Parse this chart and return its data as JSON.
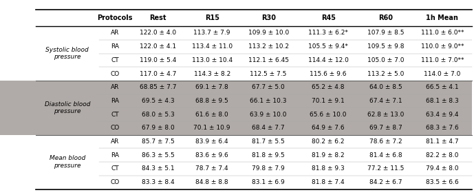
{
  "columns": [
    "Protocols",
    "Rest",
    "R15",
    "R30",
    "R45",
    "R60",
    "1h Mean"
  ],
  "sections": [
    {
      "label": "Systolic blood\npressure",
      "bg": "#ffffff",
      "rows": [
        [
          "AR",
          "122.0 ± 4.0",
          "113.7 ± 7.9",
          "109.9 ± 10.0",
          "111.3 ± 6.2*",
          "107.9 ± 8.5",
          "111.0 ± 6.0**"
        ],
        [
          "RA",
          "122.0 ± 4.1",
          "113.4 ± 11.0",
          "113.2 ± 10.2",
          "105.5 ± 9.4*",
          "109.5 ± 9.8",
          "110.0 ± 9.0**"
        ],
        [
          "CT",
          "119.0 ± 5.4",
          "113.0 ± 10.4",
          "112.1 ± 6.45",
          "114.4 ± 12.0",
          "105.0 ± 7.0",
          "111.0 ± 7.0**"
        ],
        [
          "CO",
          "117.0 ± 4.7",
          "114.3 ± 8.2",
          "112.5 ± 7.5",
          "115.6 ± 9.6",
          "113.2 ± 5.0",
          "114.0 ± 7.0"
        ]
      ]
    },
    {
      "label": "Diastolic blood\npressure",
      "bg": "#b0aba8",
      "rows": [
        [
          "AR",
          "68.85 ± 7.7",
          "69.1 ± 7.8",
          "67.7 ± 5.0",
          "65.2 ± 4.8",
          "64.0 ± 8.5",
          "66.5 ± 4.1"
        ],
        [
          "RA",
          "69.5 ± 4.3",
          "68.8 ± 9.5",
          "66.1 ± 10.3",
          "70.1 ± 9.1",
          "67.4 ± 7.1",
          "68.1 ± 8.3"
        ],
        [
          "CT",
          "68.0 ± 5.3",
          "61.6 ± 8.0",
          "63.9 ± 10.0",
          "65.6 ± 10.0",
          "62.8 ± 13.0",
          "63.4 ± 9.4"
        ],
        [
          "CO",
          "67.9 ± 8.0",
          "70.1 ± 10.9",
          "68.4 ± 7.7",
          "64.9 ± 7.6",
          "69.7 ± 8.7",
          "68.3 ± 7.6"
        ]
      ]
    },
    {
      "label": "Mean blood\npressure",
      "bg": "#ffffff",
      "rows": [
        [
          "AR",
          "85.7 ± 7.5",
          "83.9 ± 6.4",
          "81.7 ± 5.5",
          "80.2 ± 6.2",
          "78.6 ± 7.2",
          "81.1 ± 4.7"
        ],
        [
          "RA",
          "86.3 ± 5.5",
          "83.6 ± 9.6",
          "81.8 ± 9.5",
          "81.9 ± 8.2",
          "81.4 ± 6.8",
          "82.2 ± 8.0"
        ],
        [
          "CT",
          "84.3 ± 5.1",
          "78.7 ± 7.4",
          "79.8 ± 7.9",
          "81.8 ± 9.3",
          "77.2 ± 11.5",
          "79.4 ± 8.0"
        ],
        [
          "CO",
          "83.3 ± 8.4",
          "84.8 ± 8.8",
          "83.1 ± 6.9",
          "81.8 ± 7.4",
          "84.2 ± 6.7",
          "83.5 ± 6.6"
        ]
      ]
    }
  ],
  "cell_fontsize": 6.5,
  "header_fontsize": 7.0,
  "label_fontsize": 6.5,
  "protocol_fontsize": 6.5
}
